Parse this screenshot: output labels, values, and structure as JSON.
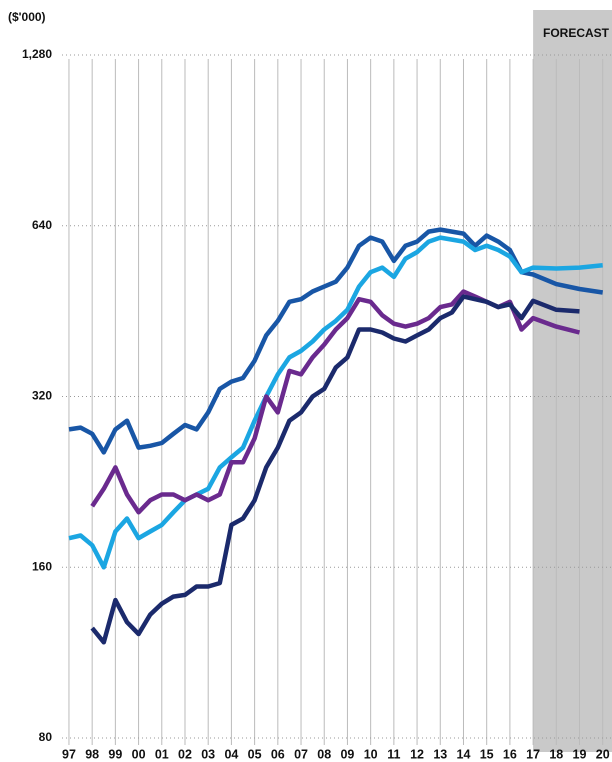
{
  "chart_data": {
    "type": "line",
    "y_label": "($'000)",
    "log_y": true,
    "grid": true,
    "forecast": {
      "label": "FORECAST",
      "start": 2017
    },
    "xlim": [
      1996.7,
      2020.4
    ],
    "xticks": [
      {
        "value": 1997,
        "label": "97"
      },
      {
        "value": 1998,
        "label": "98"
      },
      {
        "value": 1999,
        "label": "99"
      },
      {
        "value": 2000,
        "label": "00"
      },
      {
        "value": 2001,
        "label": "01"
      },
      {
        "value": 2002,
        "label": "02"
      },
      {
        "value": 2003,
        "label": "03"
      },
      {
        "value": 2004,
        "label": "04"
      },
      {
        "value": 2005,
        "label": "05"
      },
      {
        "value": 2006,
        "label": "06"
      },
      {
        "value": 2007,
        "label": "07"
      },
      {
        "value": 2008,
        "label": "08"
      },
      {
        "value": 2009,
        "label": "09"
      },
      {
        "value": 2010,
        "label": "10"
      },
      {
        "value": 2011,
        "label": "11"
      },
      {
        "value": 2012,
        "label": "12"
      },
      {
        "value": 2013,
        "label": "13"
      },
      {
        "value": 2014,
        "label": "14"
      },
      {
        "value": 2015,
        "label": "15"
      },
      {
        "value": 2016,
        "label": "16"
      },
      {
        "value": 2017,
        "label": "17"
      },
      {
        "value": 2018,
        "label": "18"
      },
      {
        "value": 2019,
        "label": "19"
      },
      {
        "value": 2020,
        "label": "20"
      }
    ],
    "ylim": [
      80,
      1280
    ],
    "yticks": [
      80,
      160,
      320,
      640,
      {
        "value": 1280,
        "label": "1,280"
      }
    ],
    "x": [
      1997,
      1997.5,
      1998,
      1998.5,
      1999,
      1999.5,
      2000,
      2000.5,
      2001,
      2001.5,
      2002,
      2002.5,
      2003,
      2003.5,
      2004,
      2004.5,
      2005,
      2005.5,
      2006,
      2006.5,
      2007,
      2007.5,
      2008,
      2008.5,
      2009,
      2009.5,
      2010,
      2010.5,
      2011,
      2011.5,
      2012,
      2012.5,
      2013,
      2013.5,
      2014,
      2014.5,
      2015,
      2015.5,
      2016,
      2016.5,
      2017,
      2018,
      2019,
      2020
    ],
    "series": [
      {
        "color": "#1856a6",
        "values": [
          280,
          282,
          275,
          255,
          280,
          290,
          260,
          262,
          265,
          275,
          285,
          280,
          300,
          330,
          340,
          345,
          370,
          410,
          435,
          470,
          475,
          490,
          500,
          510,
          540,
          590,
          610,
          600,
          555,
          590,
          600,
          625,
          630,
          625,
          620,
          590,
          615,
          600,
          580,
          530,
          525,
          505,
          495,
          488
        ]
      },
      {
        "color": "#1ba6e2",
        "values": [
          180,
          182,
          175,
          160,
          185,
          195,
          180,
          185,
          190,
          200,
          210,
          215,
          220,
          240,
          250,
          260,
          290,
          320,
          350,
          375,
          385,
          400,
          420,
          435,
          455,
          500,
          530,
          540,
          520,
          560,
          575,
          600,
          610,
          605,
          600,
          580,
          590,
          580,
          565,
          530,
          540,
          538,
          540,
          545
        ]
      },
      {
        "color": "#6a2a8e",
        "values": [
          null,
          null,
          205,
          220,
          240,
          215,
          200,
          210,
          215,
          215,
          210,
          215,
          210,
          215,
          245,
          245,
          270,
          320,
          300,
          355,
          350,
          375,
          395,
          420,
          440,
          475,
          470,
          445,
          430,
          425,
          430,
          440,
          460,
          465,
          490,
          480,
          470,
          460,
          470,
          420,
          440,
          425,
          415,
          null
        ]
      },
      {
        "color": "#1b2a6c",
        "values": [
          null,
          null,
          125,
          118,
          140,
          128,
          122,
          132,
          138,
          142,
          143,
          148,
          148,
          150,
          190,
          195,
          210,
          240,
          260,
          290,
          300,
          320,
          330,
          360,
          375,
          420,
          420,
          415,
          405,
          400,
          410,
          420,
          440,
          450,
          480,
          475,
          470,
          460,
          465,
          440,
          472,
          455,
          452,
          null
        ]
      }
    ]
  }
}
